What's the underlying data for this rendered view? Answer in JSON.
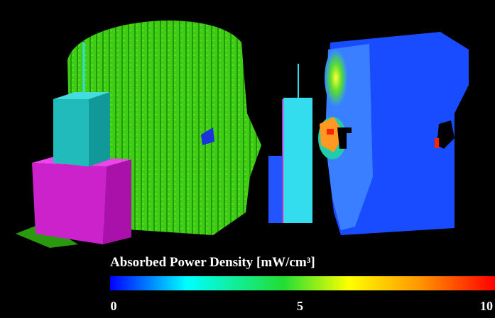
{
  "colorbar": {
    "title": "Absorbed Power Density [mW/cm³]",
    "range": [
      0,
      10
    ],
    "ticks": [
      0,
      5,
      10
    ]
  }
}
